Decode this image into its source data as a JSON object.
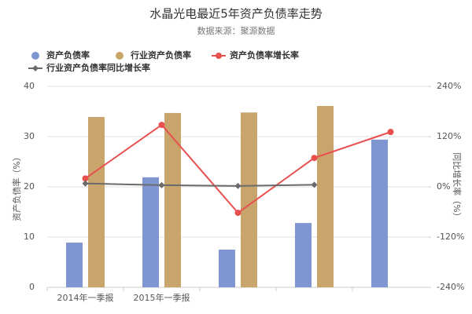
{
  "chart_data": {
    "type": "bar",
    "title": "水晶光电最近5年资产负债率走势",
    "subtitle": "数据来源：聚源数据",
    "y_label": "资产负债率（%）",
    "y2_label": "同比增长率（%）",
    "categories": [
      "2014年一季报",
      "2015年一季报",
      null,
      null,
      null
    ],
    "ylim": [
      0,
      40
    ],
    "yticks": [
      0,
      10,
      20,
      30,
      40
    ],
    "y2lim": [
      -240,
      240
    ],
    "y2ticks": [
      {
        "value": -240,
        "label": "-240%"
      },
      {
        "value": -120,
        "label": "-120%"
      },
      {
        "value": 0,
        "label": "0%"
      },
      {
        "value": 120,
        "label": "120%"
      },
      {
        "value": 240,
        "label": "240%"
      }
    ],
    "grid": true,
    "series": [
      {
        "name": "资产负债率",
        "type": "bar",
        "color": "#7f96d1",
        "values": [
          8.9,
          21.9,
          7.5,
          12.8,
          29.4
        ]
      },
      {
        "name": "行业资产负债率",
        "type": "bar",
        "color": "#c9a56b",
        "values": [
          33.9,
          34.7,
          34.8,
          36.1,
          null
        ]
      },
      {
        "name": "资产负债率增长率",
        "type": "line",
        "axis": "y2",
        "color": "#e8504f",
        "values": [
          20,
          148,
          -62,
          69,
          131
        ]
      },
      {
        "name": "行业资产负债率同比增长率",
        "type": "line",
        "axis": "y2",
        "color": "#6b6b6b",
        "values": [
          8,
          4,
          2,
          5,
          null
        ]
      }
    ]
  }
}
